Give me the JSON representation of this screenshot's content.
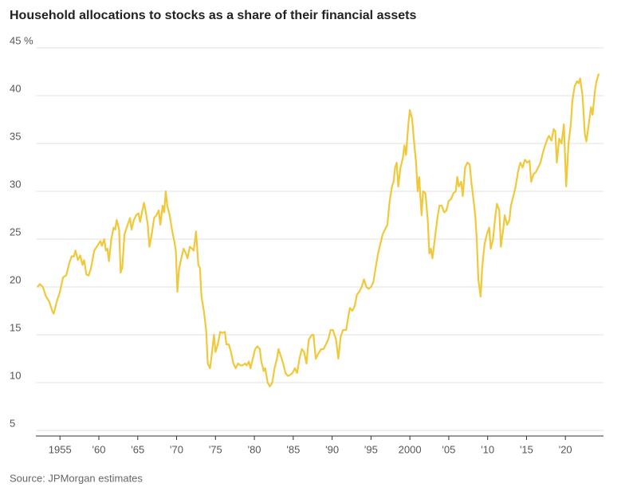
{
  "chart_data": {
    "type": "line",
    "title": "Household allocations to stocks as a share of their financial assets",
    "source": "Source: JPMorgan estimates",
    "color": "#f0c83a",
    "grid": true,
    "xlim": [
      1951.9,
      2024.9
    ],
    "ylim": [
      5,
      45
    ],
    "yticks": [
      5,
      10,
      15,
      20,
      25,
      30,
      35,
      40,
      {
        "value": 45,
        "label": "45 %"
      }
    ],
    "xticks": [
      {
        "value": 1955,
        "label": "1955"
      },
      {
        "value": 1960,
        "label": "'60"
      },
      {
        "value": 1965,
        "label": "'65"
      },
      {
        "value": 1970,
        "label": "'70"
      },
      {
        "value": 1975,
        "label": "'75"
      },
      {
        "value": 1980,
        "label": "'80"
      },
      {
        "value": 1985,
        "label": "'85"
      },
      {
        "value": 1990,
        "label": "'90"
      },
      {
        "value": 1995,
        "label": "'95"
      },
      {
        "value": 2000,
        "label": "2000"
      },
      {
        "value": 2005,
        "label": "'05"
      },
      {
        "value": 2010,
        "label": "'10"
      },
      {
        "value": 2015,
        "label": "'15"
      },
      {
        "value": 2020,
        "label": "'20"
      }
    ],
    "x": [
      1952.1,
      1952.4,
      1952.8,
      1953.2,
      1953.6,
      1954.0,
      1954.2,
      1954.6,
      1955.0,
      1955.4,
      1955.8,
      1956.2,
      1956.5,
      1956.8,
      1957.0,
      1957.3,
      1957.6,
      1957.9,
      1958.1,
      1958.4,
      1958.7,
      1959.0,
      1959.4,
      1959.8,
      1960.2,
      1960.4,
      1960.7,
      1960.9,
      1961.1,
      1961.3,
      1961.6,
      1961.9,
      1962.1,
      1962.3,
      1962.6,
      1962.8,
      1963.0,
      1963.3,
      1963.7,
      1964.0,
      1964.2,
      1964.5,
      1964.8,
      1965.1,
      1965.3,
      1965.6,
      1965.8,
      1966.0,
      1966.3,
      1966.5,
      1966.8,
      1967.1,
      1967.4,
      1967.7,
      1967.9,
      1968.2,
      1968.4,
      1968.6,
      1968.8,
      1969.1,
      1969.4,
      1969.7,
      1969.9,
      1970.1,
      1970.3,
      1970.6,
      1970.9,
      1971.2,
      1971.4,
      1971.7,
      1972.0,
      1972.2,
      1972.5,
      1972.8,
      1973.0,
      1973.2,
      1973.5,
      1973.8,
      1974.0,
      1974.3,
      1974.6,
      1974.8,
      1975.0,
      1975.3,
      1975.6,
      1975.9,
      1976.2,
      1976.4,
      1976.7,
      1977.0,
      1977.3,
      1977.6,
      1977.9,
      1978.2,
      1978.5,
      1978.8,
      1979.0,
      1979.3,
      1979.5,
      1979.8,
      1980.1,
      1980.4,
      1980.7,
      1980.9,
      1981.2,
      1981.4,
      1981.7,
      1982.0,
      1982.3,
      1982.6,
      1982.9,
      1983.1,
      1983.4,
      1983.7,
      1984.0,
      1984.3,
      1984.6,
      1984.9,
      1985.2,
      1985.5,
      1985.8,
      1986.1,
      1986.4,
      1986.7,
      1987.0,
      1987.4,
      1987.6,
      1987.9,
      1988.2,
      1988.6,
      1988.9,
      1989.2,
      1989.5,
      1989.8,
      1990.1,
      1990.5,
      1990.8,
      1991.1,
      1991.4,
      1991.8,
      1992.1,
      1992.3,
      1992.6,
      1992.9,
      1993.2,
      1993.5,
      1993.8,
      1994.1,
      1994.4,
      1994.7,
      1995.0,
      1995.3,
      1995.6,
      1995.9,
      1996.2,
      1996.5,
      1996.8,
      1997.1,
      1997.4,
      1997.7,
      1997.9,
      1998.1,
      1998.3,
      1998.5,
      1998.8,
      1999.1,
      1999.3,
      1999.5,
      1999.8,
      2000.0,
      2000.3,
      2000.5,
      2000.8,
      2001.0,
      2001.2,
      2001.5,
      2001.7,
      2002.0,
      2002.3,
      2002.5,
      2002.7,
      2002.9,
      2003.2,
      2003.5,
      2003.8,
      2004.1,
      2004.4,
      2004.7,
      2005.0,
      2005.3,
      2005.6,
      2005.9,
      2006.1,
      2006.3,
      2006.6,
      2006.8,
      2007.1,
      2007.4,
      2007.7,
      2007.9,
      2008.2,
      2008.4,
      2008.6,
      2008.8,
      2009.1,
      2009.3,
      2009.6,
      2009.9,
      2010.2,
      2010.4,
      2010.7,
      2011.0,
      2011.2,
      2011.5,
      2011.7,
      2012.0,
      2012.2,
      2012.5,
      2012.8,
      2013.0,
      2013.3,
      2013.6,
      2013.9,
      2014.2,
      2014.5,
      2014.8,
      2015.1,
      2015.4,
      2015.6,
      2015.9,
      2016.2,
      2016.5,
      2016.8,
      2017.1,
      2017.4,
      2017.7,
      2017.9,
      2018.2,
      2018.5,
      2018.7,
      2018.9,
      2019.2,
      2019.5,
      2019.8,
      2020.1,
      2020.4,
      2020.7,
      2020.9,
      2021.2,
      2021.5,
      2021.7,
      2021.9,
      2022.2,
      2022.5,
      2022.7,
      2023.0,
      2023.3,
      2023.5,
      2023.8,
      2024.0,
      2024.3
    ],
    "values": [
      20.0,
      20.3,
      20.0,
      19.0,
      18.5,
      17.5,
      17.2,
      18.5,
      19.5,
      21.0,
      21.2,
      22.5,
      23.2,
      23.2,
      23.8,
      22.8,
      23.3,
      22.3,
      22.8,
      21.3,
      21.2,
      22.0,
      23.8,
      24.3,
      24.8,
      24.3,
      25.0,
      23.8,
      24.0,
      22.7,
      25.0,
      26.2,
      26.0,
      27.0,
      26.0,
      21.5,
      22.0,
      25.5,
      26.5,
      27.2,
      26.0,
      27.0,
      27.5,
      27.7,
      26.8,
      28.0,
      28.8,
      28.0,
      26.5,
      24.2,
      25.5,
      27.2,
      27.5,
      28.0,
      26.5,
      28.5,
      27.8,
      30.0,
      28.5,
      27.5,
      26.0,
      24.8,
      23.8,
      19.5,
      21.8,
      23.0,
      24.0,
      23.5,
      23.0,
      24.2,
      24.0,
      23.8,
      25.8,
      22.3,
      22.0,
      19.0,
      17.5,
      15.5,
      12.0,
      11.5,
      13.5,
      15.0,
      13.2,
      14.0,
      15.3,
      15.2,
      15.3,
      14.0,
      14.0,
      13.2,
      12.0,
      11.5,
      12.0,
      11.8,
      11.8,
      12.0,
      11.8,
      12.2,
      11.5,
      12.5,
      13.5,
      13.8,
      13.5,
      12.2,
      11.2,
      11.5,
      10.0,
      9.6,
      10.0,
      11.5,
      12.5,
      13.5,
      12.8,
      12.0,
      11.0,
      10.7,
      10.8,
      11.0,
      11.5,
      11.0,
      12.5,
      13.5,
      13.2,
      12.0,
      14.5,
      15.0,
      15.0,
      12.5,
      13.0,
      13.5,
      13.5,
      14.0,
      14.5,
      15.5,
      15.5,
      14.5,
      12.5,
      14.8,
      15.5,
      15.5,
      17.0,
      17.8,
      17.5,
      18.0,
      19.2,
      19.5,
      20.0,
      20.8,
      20.0,
      19.8,
      20.0,
      20.5,
      22.0,
      23.5,
      24.5,
      25.5,
      26.0,
      26.5,
      29.0,
      30.5,
      31.0,
      32.5,
      33.0,
      30.5,
      32.5,
      33.5,
      34.8,
      33.8,
      37.0,
      38.5,
      37.5,
      35.5,
      33.0,
      30.0,
      31.5,
      27.5,
      30.0,
      29.8,
      27.0,
      23.5,
      24.0,
      23.0,
      25.0,
      27.0,
      28.5,
      28.5,
      27.8,
      28.0,
      29.0,
      29.2,
      29.8,
      30.0,
      31.5,
      30.5,
      31.0,
      29.5,
      32.5,
      33.0,
      32.8,
      31.0,
      29.0,
      27.5,
      25.0,
      20.8,
      19.0,
      22.0,
      24.5,
      25.5,
      26.2,
      24.0,
      25.0,
      27.5,
      28.7,
      28.0,
      24.2,
      26.0,
      27.5,
      26.5,
      27.0,
      28.5,
      29.5,
      30.5,
      32.0,
      33.0,
      32.5,
      33.3,
      33.0,
      33.2,
      31.0,
      31.8,
      32.0,
      32.5,
      33.0,
      34.0,
      34.8,
      35.5,
      35.8,
      35.3,
      36.5,
      36.3,
      33.0,
      35.5,
      35.0,
      37.0,
      30.5,
      35.0,
      37.0,
      39.5,
      41.0,
      41.5,
      41.3,
      41.8,
      40.0,
      36.0,
      35.2,
      37.0,
      38.8,
      38.0,
      40.5,
      41.5,
      42.3
    ]
  }
}
